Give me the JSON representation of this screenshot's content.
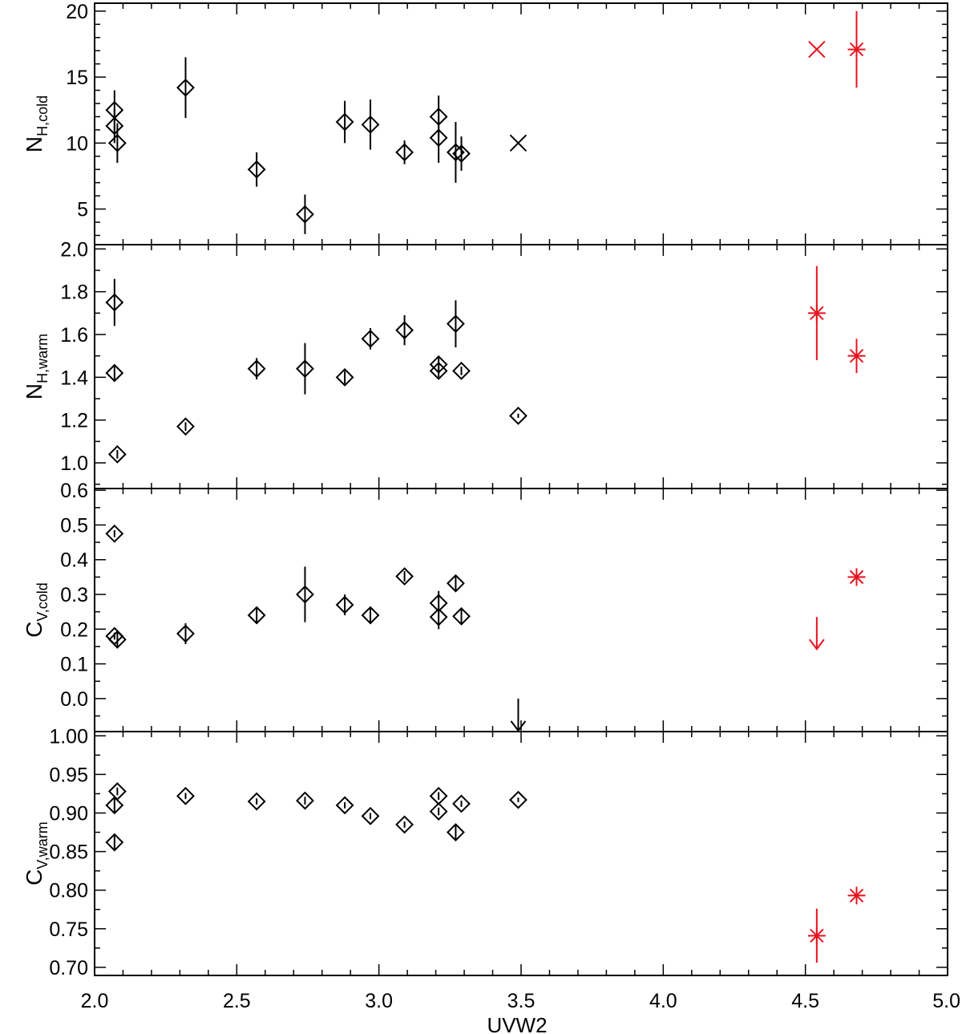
{
  "chart_data": [
    {
      "type": "scatter",
      "panel": "NH_cold",
      "ylabel_main": "N",
      "ylabel_sub": "H,cold",
      "xlim": [
        2.0,
        5.0
      ],
      "ylim": [
        2.3,
        20.6
      ],
      "yticks": [
        5,
        10,
        15,
        20
      ],
      "ytick_labels": [
        "5",
        "10",
        "15",
        "20"
      ],
      "series": [
        {
          "marker": "diamond",
          "color": "#000000",
          "points": [
            {
              "x": 2.07,
              "y": 12.5,
              "err": 1.5
            },
            {
              "x": 2.07,
              "y": 11.3,
              "err": 1.3
            },
            {
              "x": 2.08,
              "y": 10.0,
              "err": 1.5
            },
            {
              "x": 2.32,
              "y": 14.2,
              "err": 2.3
            },
            {
              "x": 2.57,
              "y": 8.0,
              "err": 1.3
            },
            {
              "x": 2.74,
              "y": 4.6,
              "err": 1.5
            },
            {
              "x": 2.88,
              "y": 11.6,
              "err": 1.6
            },
            {
              "x": 2.97,
              "y": 11.4,
              "err": 1.9
            },
            {
              "x": 3.09,
              "y": 9.3,
              "err": 0.9
            },
            {
              "x": 3.21,
              "y": 12.0,
              "err": 1.6
            },
            {
              "x": 3.21,
              "y": 10.4,
              "err": 1.9
            },
            {
              "x": 3.27,
              "y": 9.3,
              "err": 2.3
            },
            {
              "x": 3.29,
              "y": 9.2,
              "err": 1.3
            }
          ]
        },
        {
          "marker": "cross",
          "color": "#000000",
          "points": [
            {
              "x": 3.49,
              "y": 10.0,
              "err": 0
            }
          ]
        },
        {
          "marker": "cross",
          "color": "#e8121e",
          "points": [
            {
              "x": 4.54,
              "y": 17.1,
              "err": 0
            }
          ]
        },
        {
          "marker": "asterisk",
          "color": "#e8121e",
          "points": [
            {
              "x": 4.68,
              "y": 17.1,
              "err": 2.9
            }
          ]
        }
      ]
    },
    {
      "type": "scatter",
      "panel": "NH_warm",
      "ylabel_main": "N",
      "ylabel_sub": "H,warm",
      "xlim": [
        2.0,
        5.0
      ],
      "ylim": [
        0.88,
        2.02
      ],
      "yticks": [
        1.0,
        1.2,
        1.4,
        1.6,
        1.8,
        2.0
      ],
      "ytick_labels": [
        "1.0",
        "1.2",
        "1.4",
        "1.6",
        "1.8",
        "2.0"
      ],
      "series": [
        {
          "marker": "diamond",
          "color": "#000000",
          "points": [
            {
              "x": 2.07,
              "y": 1.75,
              "err": 0.11
            },
            {
              "x": 2.07,
              "y": 1.42,
              "err": 0.04
            },
            {
              "x": 2.08,
              "y": 1.04,
              "err": 0.02
            },
            {
              "x": 2.32,
              "y": 1.17,
              "err": 0.02
            },
            {
              "x": 2.57,
              "y": 1.44,
              "err": 0.05
            },
            {
              "x": 2.74,
              "y": 1.44,
              "err": 0.12
            },
            {
              "x": 2.88,
              "y": 1.4,
              "err": 0.03
            },
            {
              "x": 2.97,
              "y": 1.58,
              "err": 0.05
            },
            {
              "x": 3.09,
              "y": 1.62,
              "err": 0.07
            },
            {
              "x": 3.21,
              "y": 1.46,
              "err": 0.04
            },
            {
              "x": 3.21,
              "y": 1.43,
              "err": 0.03
            },
            {
              "x": 3.27,
              "y": 1.65,
              "err": 0.11
            },
            {
              "x": 3.29,
              "y": 1.43,
              "err": 0.02
            },
            {
              "x": 3.49,
              "y": 1.22,
              "err": 0.01
            }
          ]
        },
        {
          "marker": "asterisk",
          "color": "#e8121e",
          "points": [
            {
              "x": 4.54,
              "y": 1.7,
              "err": 0.22
            },
            {
              "x": 4.68,
              "y": 1.5,
              "err": 0.08
            }
          ]
        }
      ]
    },
    {
      "type": "scatter",
      "panel": "CV_cold",
      "ylabel_main": "C",
      "ylabel_sub": "V,cold",
      "xlim": [
        2.0,
        5.0
      ],
      "ylim": [
        -0.095,
        0.605
      ],
      "yticks": [
        0.0,
        0.1,
        0.2,
        0.3,
        0.4,
        0.5,
        0.6
      ],
      "ytick_labels": [
        "0.0",
        "0.1",
        "0.2",
        "0.3",
        "0.4",
        "0.5",
        "0.6"
      ],
      "series": [
        {
          "marker": "diamond",
          "color": "#000000",
          "points": [
            {
              "x": 2.07,
              "y": 0.475,
              "err": 0.01
            },
            {
              "x": 2.07,
              "y": 0.18,
              "err": 0.01
            },
            {
              "x": 2.08,
              "y": 0.17,
              "err": 0.025
            },
            {
              "x": 2.32,
              "y": 0.187,
              "err": 0.03
            },
            {
              "x": 2.57,
              "y": 0.24,
              "err": 0.025
            },
            {
              "x": 2.74,
              "y": 0.3,
              "err": 0.08
            },
            {
              "x": 2.88,
              "y": 0.27,
              "err": 0.03
            },
            {
              "x": 2.97,
              "y": 0.24,
              "err": 0.025
            },
            {
              "x": 3.09,
              "y": 0.352,
              "err": 0.015
            },
            {
              "x": 3.21,
              "y": 0.275,
              "err": 0.035
            },
            {
              "x": 3.21,
              "y": 0.235,
              "err": 0.035
            },
            {
              "x": 3.27,
              "y": 0.332,
              "err": 0.02
            },
            {
              "x": 3.29,
              "y": 0.237,
              "err": 0.02
            }
          ]
        },
        {
          "marker": "upper-limit-arrow",
          "color": "#000000",
          "points": [
            {
              "x": 3.49,
              "y": 0.0
            }
          ]
        },
        {
          "marker": "upper-limit-arrow",
          "color": "#e8121e",
          "points": [
            {
              "x": 4.54,
              "y": 0.235
            }
          ]
        },
        {
          "marker": "asterisk",
          "color": "#e8121e",
          "points": [
            {
              "x": 4.68,
              "y": 0.35,
              "err": 0.01
            }
          ]
        }
      ]
    },
    {
      "type": "scatter",
      "panel": "CV_warm",
      "ylabel_main": "C",
      "ylabel_sub": "V,warm",
      "xlim": [
        2.0,
        5.0
      ],
      "ylim": [
        0.6895,
        1.0055
      ],
      "yticks": [
        0.7,
        0.75,
        0.8,
        0.85,
        0.9,
        0.95,
        1.0
      ],
      "ytick_labels": [
        "0.70",
        "0.75",
        "0.80",
        "0.85",
        "0.90",
        "0.95",
        "1.00"
      ],
      "series": [
        {
          "marker": "diamond",
          "color": "#000000",
          "points": [
            {
              "x": 2.07,
              "y": 0.91,
              "err": 0.01
            },
            {
              "x": 2.08,
              "y": 0.928,
              "err": 0.005
            },
            {
              "x": 2.07,
              "y": 0.862,
              "err": 0.01
            },
            {
              "x": 2.32,
              "y": 0.922,
              "err": 0.004
            },
            {
              "x": 2.57,
              "y": 0.915,
              "err": 0.004
            },
            {
              "x": 2.74,
              "y": 0.916,
              "err": 0.005
            },
            {
              "x": 2.88,
              "y": 0.91,
              "err": 0.004
            },
            {
              "x": 2.97,
              "y": 0.896,
              "err": 0.004
            },
            {
              "x": 3.09,
              "y": 0.885,
              "err": 0.004
            },
            {
              "x": 3.21,
              "y": 0.922,
              "err": 0.005
            },
            {
              "x": 3.21,
              "y": 0.902,
              "err": 0.005
            },
            {
              "x": 3.27,
              "y": 0.875,
              "err": 0.01
            },
            {
              "x": 3.29,
              "y": 0.912,
              "err": 0.004
            },
            {
              "x": 3.49,
              "y": 0.917,
              "err": 0.003
            }
          ]
        },
        {
          "marker": "asterisk",
          "color": "#e8121e",
          "points": [
            {
              "x": 4.54,
              "y": 0.741,
              "err": 0.035
            },
            {
              "x": 4.68,
              "y": 0.793,
              "err": 0.005
            }
          ]
        }
      ]
    }
  ],
  "xaxis": {
    "label": "UVW2",
    "ticks": [
      2.0,
      2.5,
      3.0,
      3.5,
      4.0,
      4.5,
      5.0
    ],
    "tick_labels": [
      "2.0",
      "2.5",
      "3.0",
      "3.5",
      "4.0",
      "4.5",
      "5.0"
    ]
  }
}
